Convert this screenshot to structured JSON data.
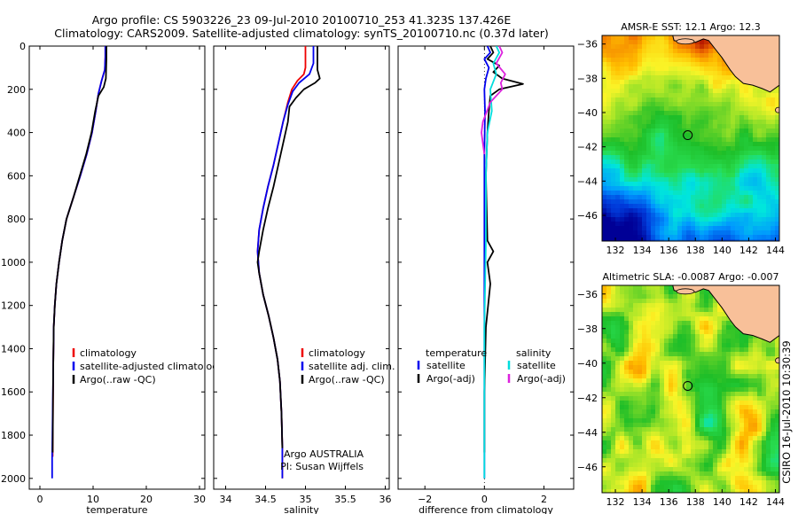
{
  "header": {
    "line1": "Argo profile: CS 5903226_23 09-Jul-2010 20100710_253 41.323S 137.426E",
    "line2": "Climatology: CARS2009. Satellite-adjusted climatology: synTS_20100710.nc (0.37d later)"
  },
  "side_label": "CSIRO 16-Jul-2010 10:30:39",
  "chart_data": [
    {
      "type": "line",
      "xlabel": "temperature",
      "ylabel": "",
      "xlim": [
        -2,
        31
      ],
      "ylim": [
        2050,
        0
      ],
      "xticks": [
        0,
        10,
        20,
        30
      ],
      "yticks": [
        0,
        200,
        400,
        600,
        800,
        1000,
        1200,
        1400,
        1600,
        1800,
        2000
      ],
      "series": [
        {
          "name": "climatology",
          "color": "#ee0000",
          "x": [
            12.3,
            12.3,
            12.2,
            11.6,
            11.0,
            10.5,
            9.8,
            8.8,
            7.6,
            6.3,
            5.0,
            4.2,
            3.6,
            3.1,
            2.8,
            2.6,
            2.5,
            2.4
          ],
          "y": [
            0,
            50,
            110,
            160,
            220,
            300,
            400,
            500,
            600,
            700,
            800,
            900,
            1000,
            1100,
            1200,
            1300,
            1500,
            1900
          ]
        },
        {
          "name": "satellite-adjusted climatology",
          "color": "#0000ee",
          "x": [
            12.3,
            12.3,
            12.2,
            11.6,
            11.0,
            10.5,
            9.8,
            8.8,
            7.6,
            6.3,
            5.0,
            4.2,
            3.6,
            3.1,
            2.8,
            2.6,
            2.5,
            2.3,
            2.3
          ],
          "y": [
            0,
            50,
            110,
            160,
            220,
            300,
            400,
            500,
            600,
            700,
            800,
            900,
            1000,
            1100,
            1200,
            1300,
            1500,
            1900,
            2000
          ]
        },
        {
          "name": "Argo(..raw -QC)",
          "color": "#000000",
          "x": [
            12.5,
            12.5,
            12.4,
            12.0,
            11.0,
            10.4,
            9.7,
            8.7,
            7.5,
            6.3,
            5.0,
            4.2,
            3.6,
            3.1,
            2.8,
            2.6,
            2.5,
            2.4
          ],
          "y": [
            0,
            60,
            150,
            190,
            230,
            300,
            400,
            500,
            600,
            700,
            800,
            900,
            1000,
            1100,
            1200,
            1300,
            1500,
            1880
          ]
        }
      ],
      "legend": [
        "climatology",
        "satellite-adjusted climatology",
        "Argo(..raw -QC)"
      ],
      "legend_position": "bottom-right"
    },
    {
      "type": "line",
      "xlabel": "salinity",
      "ylabel": "",
      "xlim": [
        33.85,
        36.05
      ],
      "ylim": [
        2050,
        0
      ],
      "xticks": [
        34,
        34.5,
        35,
        35.5,
        36
      ],
      "yticks": [
        0,
        200,
        400,
        600,
        800,
        1000,
        1200,
        1400,
        1600,
        1800,
        2000
      ],
      "series": [
        {
          "name": "climatology",
          "color": "#ee0000",
          "x": [
            35.0,
            35.0,
            34.98,
            34.9,
            34.83,
            34.78,
            34.72,
            34.66,
            34.6,
            34.53,
            34.47,
            34.42,
            34.4,
            34.42,
            34.47,
            34.54,
            34.6,
            34.65,
            34.68,
            34.7,
            34.71,
            34.71
          ],
          "y": [
            0,
            100,
            130,
            160,
            200,
            260,
            350,
            450,
            550,
            650,
            750,
            850,
            950,
            1050,
            1150,
            1250,
            1350,
            1450,
            1550,
            1700,
            1850,
            2000
          ]
        },
        {
          "name": "satellite adj. clim.",
          "color": "#0000ee",
          "x": [
            35.1,
            35.1,
            35.05,
            34.92,
            34.84,
            34.78,
            34.72,
            34.66,
            34.6,
            34.53,
            34.47,
            34.42,
            34.4,
            34.42,
            34.47,
            34.54,
            34.6,
            34.65,
            34.68,
            34.7,
            34.71,
            34.71
          ],
          "y": [
            0,
            80,
            130,
            170,
            210,
            270,
            350,
            450,
            550,
            650,
            750,
            850,
            950,
            1050,
            1150,
            1250,
            1350,
            1450,
            1550,
            1700,
            1850,
            2000
          ]
        },
        {
          "name": "Argo(..raw -QC)",
          "color": "#000000",
          "x": [
            35.15,
            35.15,
            35.18,
            35.12,
            35.05,
            34.98,
            34.88,
            34.8,
            34.78,
            34.72,
            34.66,
            34.6,
            34.53,
            34.47,
            34.42,
            34.4,
            34.42,
            34.47,
            34.54,
            34.6,
            34.65,
            34.68,
            34.7,
            34.71
          ],
          "y": [
            0,
            110,
            150,
            170,
            185,
            200,
            240,
            280,
            350,
            450,
            550,
            650,
            750,
            850,
            950,
            1000,
            1050,
            1150,
            1250,
            1350,
            1450,
            1550,
            1700,
            1860
          ]
        }
      ],
      "legend": [
        "climatology",
        "satellite adj. clim.",
        "Argo(..raw -QC)"
      ],
      "legend_position": "bottom-right",
      "annotation": [
        "Argo AUSTRALIA",
        "PI: Susan Wijffels"
      ]
    },
    {
      "type": "line",
      "xlabel": "difference from climatology",
      "ylabel": "",
      "xlim": [
        -2.9,
        3.0
      ],
      "ylim": [
        2050,
        0
      ],
      "xticks": [
        -2,
        0,
        2
      ],
      "yticks": [
        0,
        200,
        400,
        600,
        800,
        1000,
        1200,
        1400,
        1600,
        1800,
        2000
      ],
      "legend_headers": [
        "temperature",
        "salinity"
      ],
      "series": [
        {
          "name": "satellite",
          "group": "temperature",
          "color": "#0000ee",
          "x": [
            0.1,
            0.2,
            0.0,
            0.15,
            0.05,
            0.0,
            0.02,
            0.0,
            0.0,
            0.0,
            0.0,
            0.0
          ],
          "y": [
            0,
            30,
            60,
            100,
            150,
            200,
            300,
            500,
            800,
            1200,
            1600,
            2000
          ]
        },
        {
          "name": "Argo(-adj)",
          "group": "temperature",
          "color": "#000000",
          "x": [
            0.2,
            0.3,
            0.1,
            0.5,
            0.3,
            0.6,
            1.3,
            0.5,
            0.2,
            0.15,
            0.1,
            0.05,
            0.1,
            0.3,
            0.1,
            0.2,
            0.05,
            0.0,
            0.0
          ],
          "y": [
            0,
            30,
            60,
            90,
            120,
            150,
            175,
            200,
            230,
            300,
            400,
            600,
            900,
            950,
            1000,
            1100,
            1300,
            1600,
            1880
          ]
        },
        {
          "name": "satellite",
          "group": "salinity",
          "color": "#00dddd",
          "x": [
            0.4,
            0.5,
            0.3,
            0.4,
            0.2,
            0.25,
            0.1,
            0.05,
            0.05,
            0.0,
            0.0,
            0.0
          ],
          "y": [
            0,
            30,
            80,
            130,
            200,
            300,
            400,
            600,
            900,
            1300,
            1700,
            2000
          ]
        },
        {
          "name": "Argo(-adj)",
          "group": "salinity",
          "color": "#dd22dd",
          "x": [
            0.5,
            0.6,
            0.4,
            0.7,
            0.55,
            0.6,
            0.2,
            -0.05,
            -0.1,
            -0.05,
            0.0
          ],
          "y": [
            0,
            30,
            80,
            130,
            170,
            200,
            260,
            350,
            400,
            450,
            500
          ]
        }
      ],
      "legend_position": "bottom-right"
    },
    {
      "type": "heatmap",
      "title": "AMSR-E SST: 12.1  Argo: 12.3",
      "xlim": [
        131,
        144.3
      ],
      "ylim": [
        -47.5,
        -35.5
      ],
      "xticks": [
        132,
        134,
        136,
        138,
        140,
        142,
        144
      ],
      "yticks": [
        -36,
        -38,
        -40,
        -42,
        -44,
        -46
      ],
      "profile_marker": {
        "lon": 137.43,
        "lat": -41.32
      },
      "land_color": "#f8c099"
    },
    {
      "type": "heatmap",
      "title": "Altimetric SLA: -0.0087  Argo: -0.007",
      "xlim": [
        131,
        144.3
      ],
      "ylim": [
        -47.5,
        -35.5
      ],
      "xticks": [
        132,
        134,
        136,
        138,
        140,
        142,
        144
      ],
      "yticks": [
        -36,
        -38,
        -40,
        -42,
        -44,
        -46
      ],
      "profile_marker": {
        "lon": 137.43,
        "lat": -41.32
      },
      "land_color": "#f8c099"
    }
  ]
}
